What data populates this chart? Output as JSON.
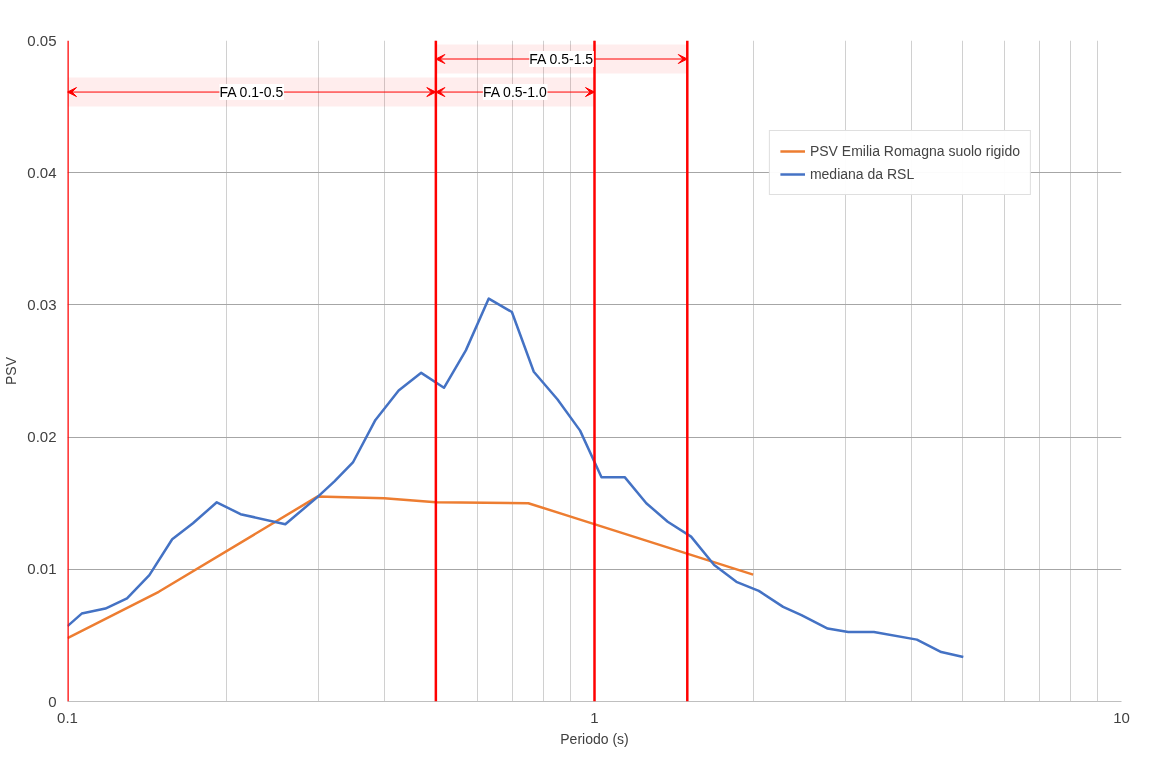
{
  "chart_data": {
    "type": "line",
    "xlabel": "Periodo (s)",
    "ylabel": "PSV",
    "log": "x",
    "xlim": [
      0.1,
      10
    ],
    "xticks": [
      0.1,
      1,
      10
    ],
    "ylim": [
      0,
      0.05
    ],
    "yticks": [
      0,
      0.01,
      0.02,
      0.03,
      0.04,
      0.05
    ],
    "grid": true,
    "legend": "top right",
    "line_style": "solid",
    "marker": "none",
    "series": [
      {
        "name": "PSV Emilia Romagna suolo rigido",
        "color": "#ed7d31",
        "x": [
          0.1,
          0.149,
          0.298,
          0.399,
          0.5,
          0.749,
          0.898,
          2.0
        ],
        "values": [
          0.0048,
          0.0083,
          0.0155,
          0.01538,
          0.01508,
          0.015,
          0.014,
          0.0096
        ]
      },
      {
        "name": "mediana da RSL",
        "color": "#4472c4",
        "x": [
          0.1,
          0.1064,
          0.118,
          0.1297,
          0.143,
          0.158,
          0.173,
          0.192,
          0.213,
          0.259,
          0.298,
          0.321,
          0.348,
          0.384,
          0.425,
          0.469,
          0.518,
          0.57,
          0.63,
          0.697,
          0.767,
          0.851,
          0.939,
          1.031,
          1.141,
          1.254,
          1.377,
          1.525,
          1.687,
          1.859,
          2.05,
          2.28,
          2.47,
          2.77,
          3.03,
          3.39,
          4.09,
          4.55,
          5.01
        ],
        "values": [
          0.0057,
          0.00665,
          0.00703,
          0.0078,
          0.00956,
          0.01227,
          0.01348,
          0.01507,
          0.01417,
          0.01341,
          0.01546,
          0.01665,
          0.01808,
          0.0213,
          0.02352,
          0.02486,
          0.02373,
          0.02656,
          0.03048,
          0.02946,
          0.02494,
          0.02284,
          0.02049,
          0.01697,
          0.01697,
          0.015,
          0.0136,
          0.01247,
          0.01032,
          0.00905,
          0.00837,
          0.00716,
          0.00653,
          0.00552,
          0.00526,
          0.00526,
          0.00468,
          0.00374,
          0.00336
        ]
      }
    ],
    "ref_lines": [
      {
        "axis": "x",
        "value": 0.1,
        "color": "#ff0000"
      },
      {
        "axis": "x",
        "value": 0.5,
        "color": "#ff0000"
      },
      {
        "axis": "x",
        "value": 1,
        "color": "#ff0000"
      },
      {
        "axis": "x",
        "value": 1.5,
        "color": "#ff0000"
      }
    ],
    "bands": [
      {
        "axis": "x",
        "from": 0.1,
        "to": 0.5,
        "label": "FA 0.1-0.5",
        "color": "#ff0000"
      },
      {
        "axis": "x",
        "from": 0.5,
        "to": 1,
        "label": "FA 0.5-1.0",
        "color": "#ff0000"
      },
      {
        "axis": "x",
        "from": 0.5,
        "to": 1.5,
        "label": "FA 0.5-1.5",
        "color": "#ff0000"
      }
    ]
  }
}
